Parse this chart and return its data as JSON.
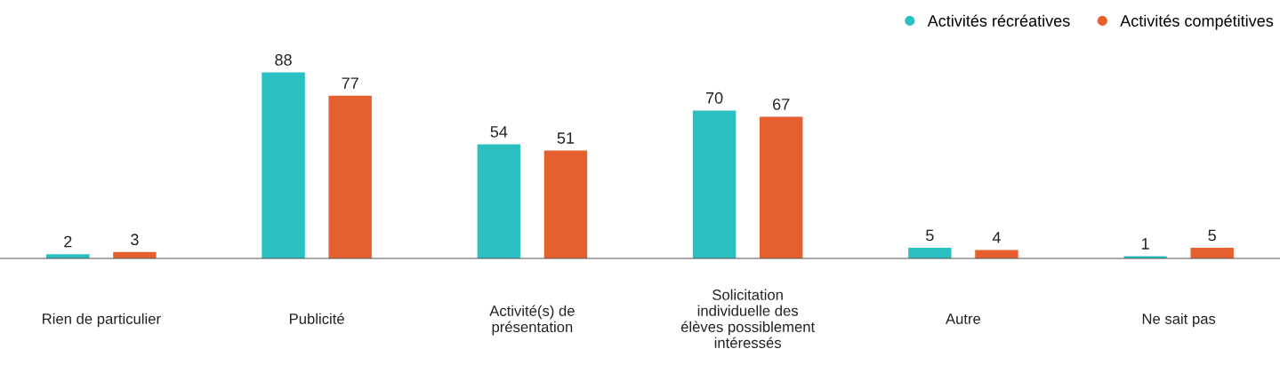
{
  "chart_data": {
    "type": "bar",
    "categories": [
      "Rien de particulier",
      "Publicité",
      "Activité(s) de\nprésentation",
      "Solicitation\nindividuelle des\nélèves possiblement\nintéressés",
      "Autre",
      "Ne sait pas"
    ],
    "series": [
      {
        "name": "Activités récréatives",
        "color": "#2abfc0",
        "values": [
          2,
          88,
          54,
          70,
          5,
          1
        ]
      },
      {
        "name": "Activités compétitives",
        "color": "#e65f2f",
        "values": [
          3,
          77,
          51,
          67,
          4,
          5
        ]
      }
    ],
    "data_labels": true,
    "legend": "top right",
    "grid": false,
    "tick_labels": "x"
  }
}
